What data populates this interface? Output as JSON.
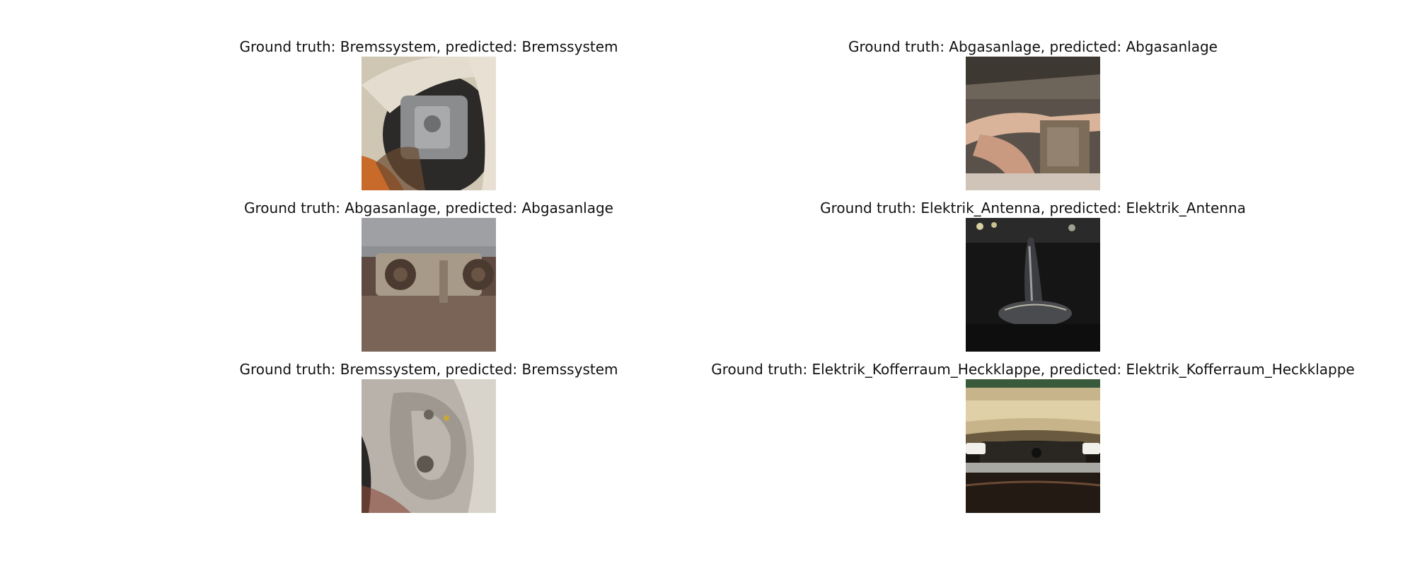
{
  "panels": [
    {
      "caption": "Ground truth: Bremssystem, predicted: Bremssystem",
      "image": "brake-caliper-wheel-photo"
    },
    {
      "caption": "Ground truth: Abgasanlage, predicted: Abgasanlage",
      "image": "exhaust-underbody-photo"
    },
    {
      "caption": "Ground truth: Abgasanlage, predicted: Abgasanlage",
      "image": "rusty-exhaust-clamp-photo"
    },
    {
      "caption": "Ground truth: Elektrik_Antenna, predicted: Elektrik_Antenna",
      "image": "roof-antenna-photo"
    },
    {
      "caption": "Ground truth: Bremssystem, predicted: Bremssystem",
      "image": "brake-caliper-photo"
    },
    {
      "caption": "Ground truth: Elektrik_Kofferraum_Heckklappe, predicted: Elektrik_Kofferraum_Heckklappe",
      "image": "trunk-lid-camera-photo"
    }
  ]
}
